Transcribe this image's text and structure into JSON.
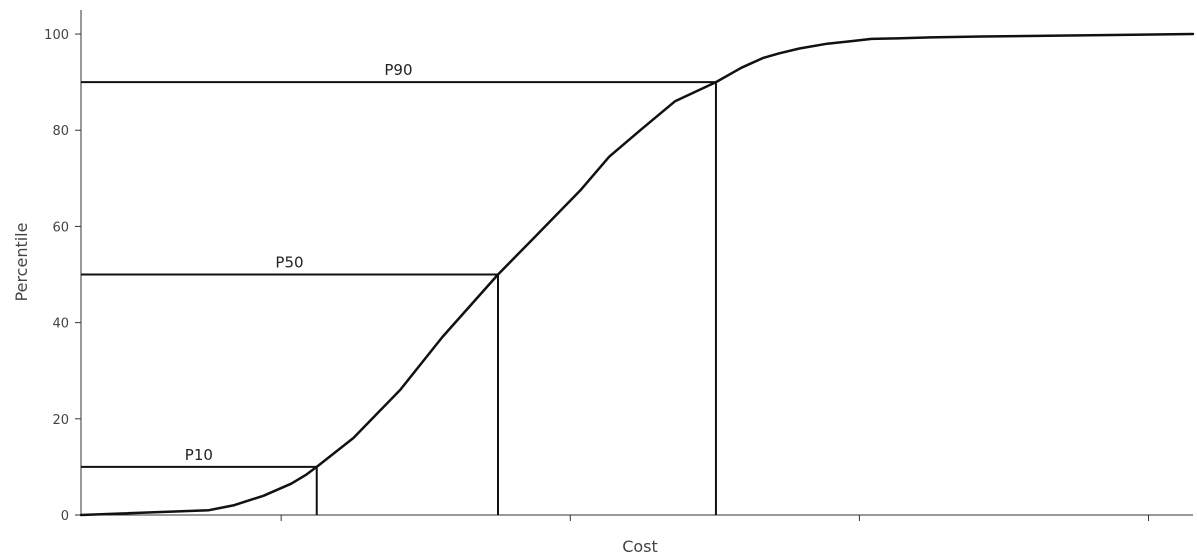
{
  "chart_data": {
    "type": "line",
    "xlabel": "Cost",
    "ylabel": "Percentile",
    "ylim": [
      0,
      105
    ],
    "xlim": [
      0,
      100
    ],
    "yticks": [
      "0",
      "20",
      "40",
      "60",
      "80",
      "100"
    ],
    "ytick_values": [
      0,
      20,
      40,
      60,
      80,
      100
    ],
    "xtick_values": [
      18,
      44,
      70,
      96
    ],
    "xtick_labels": [
      "",
      "",
      "",
      ""
    ],
    "grid": false,
    "legend": "none",
    "colors": {
      "line": "#111111",
      "axis": "#333333",
      "text": "#444444"
    },
    "series": [
      {
        "x": [
          0,
          11.5,
          13.7,
          16.4,
          18.9,
          20.2,
          21.2,
          24.5,
          28.7,
          32.5,
          37.5,
          40.9,
          44.9,
          47.5,
          50.3,
          53.4,
          57.1,
          59.4,
          61.3,
          62.8,
          64.6,
          67.1,
          69.2,
          71.1,
          73.4,
          76.4,
          81.0,
          100
        ],
        "y": [
          0,
          1,
          2,
          4,
          6.5,
          8.3,
          10,
          16,
          26,
          37,
          50,
          58,
          67.5,
          74.5,
          80,
          86,
          90,
          93,
          95,
          96,
          97,
          98,
          98.5,
          99,
          99.1,
          99.3,
          99.5,
          100
        ]
      }
    ],
    "reference_lines": [
      {
        "label": "P10",
        "x": 21.2,
        "y": 10
      },
      {
        "label": "P50",
        "x": 37.5,
        "y": 50
      },
      {
        "label": "P90",
        "x": 57.1,
        "y": 90
      }
    ]
  }
}
